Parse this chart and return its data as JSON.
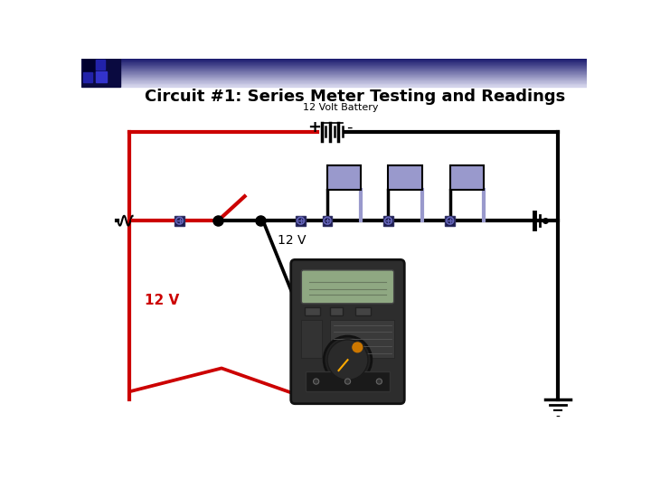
{
  "title": "Circuit #1: Series Meter Testing and Readings",
  "subtitle": "12 Volt Battery",
  "bg_color": "#ffffff",
  "title_fontsize": 13,
  "subtitle_fontsize": 8,
  "wire_black": "#000000",
  "wire_red": "#cc0000",
  "wire_lw": 3.0,
  "comp_fill": "#8888bb",
  "comp_fill2": "#9999cc",
  "comp_edge": "#000000",
  "fuse_fill": "#1a1a4a",
  "fuse_edge": "#333366",
  "plus_label": "+",
  "minus_label": "-",
  "label_12v": "12 V",
  "header_left": "#1a1a6e",
  "header_right": "#d8d8ee",
  "decor_dark": "#0a0a40",
  "decor_mid": "#2222aa"
}
